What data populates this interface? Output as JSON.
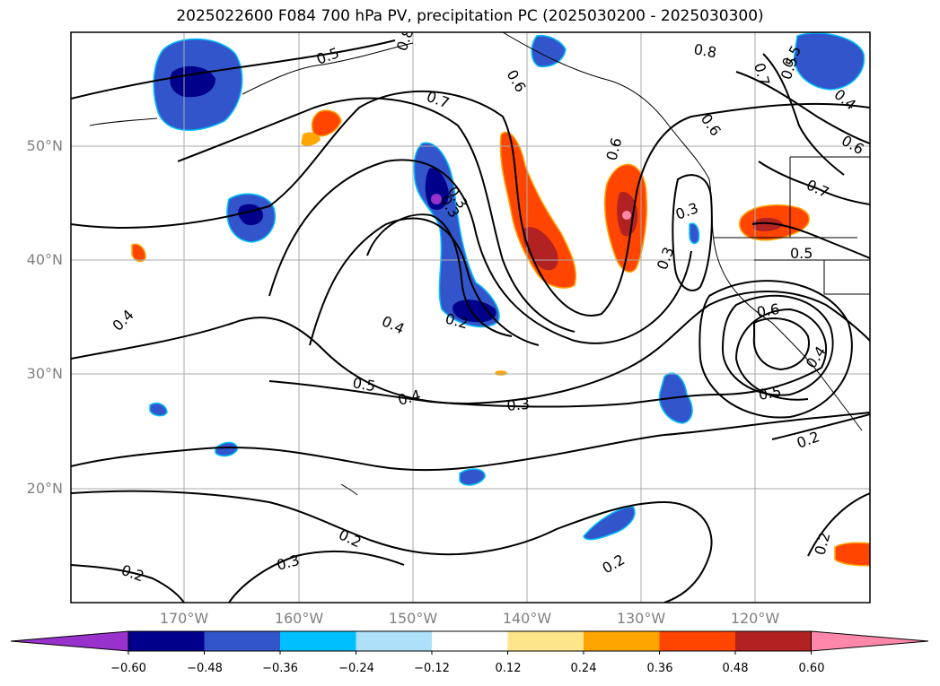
{
  "title": "2025022600 F084 700 hPa PV, precipitation PC (2025030200 - 2025030300)",
  "latitude_labels": [
    "50°N",
    "40°N",
    "30°N",
    "20°N"
  ],
  "longitude_labels": [
    "170°W",
    "160°W",
    "150°W",
    "140°W",
    "130°W",
    "120°W"
  ],
  "contour_labels": [
    "0.8",
    "0.7",
    "0.6",
    "0.5",
    "0.4",
    "0.3",
    "0.2",
    "0.8",
    "0.7",
    "0.6",
    "0.5",
    "0.4",
    "0.3",
    "0.2",
    "0.6",
    "0.5",
    "0.4",
    "0.3",
    "0.2",
    "0.5",
    "0.4",
    "0.2",
    "0.2",
    "0.3",
    "0.2",
    "0.5",
    "0.6",
    "0.6",
    "0.4",
    "0.7",
    "0.3",
    "0.3",
    "0.5"
  ],
  "colorbar": {
    "ticks": [
      "−0.60",
      "−0.48",
      "−0.36",
      "−0.24",
      "−0.12",
      "0.12",
      "0.24",
      "0.36",
      "0.48",
      "0.60"
    ],
    "colors": [
      "#9932cc",
      "#00008b",
      "#3355cc",
      "#00bfff",
      "#aee0fa",
      "#ffffff",
      "#fde68a",
      "#ffa500",
      "#ff4500",
      "#b22222",
      "#ff88aa"
    ]
  }
}
